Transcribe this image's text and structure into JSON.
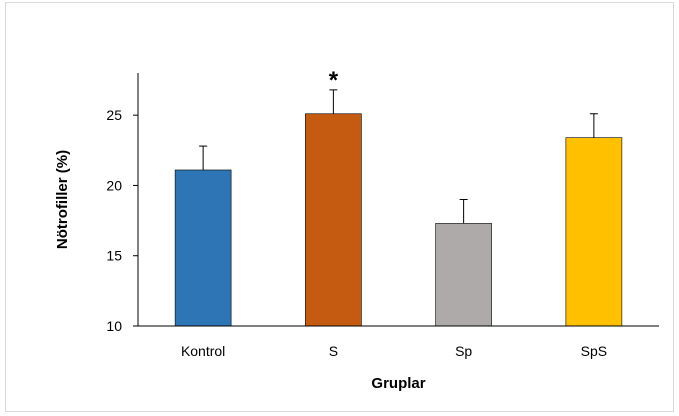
{
  "chart_data": {
    "type": "bar",
    "categories": [
      "Kontrol",
      "S",
      "Sp",
      "SpS"
    ],
    "values": [
      21.1,
      25.1,
      17.3,
      23.4
    ],
    "error": [
      1.7,
      1.7,
      1.7,
      1.7
    ],
    "colors": [
      "#2e75b6",
      "#c55a11",
      "#aeaaaa",
      "#ffc000"
    ],
    "annotations": [
      {
        "category": "S",
        "text": "*"
      }
    ],
    "xlabel": "Gruplar",
    "ylabel": "Nötrofiller (%)",
    "ylim": [
      10,
      28
    ],
    "yticks": [
      10,
      15,
      20,
      25
    ],
    "grid": false
  }
}
